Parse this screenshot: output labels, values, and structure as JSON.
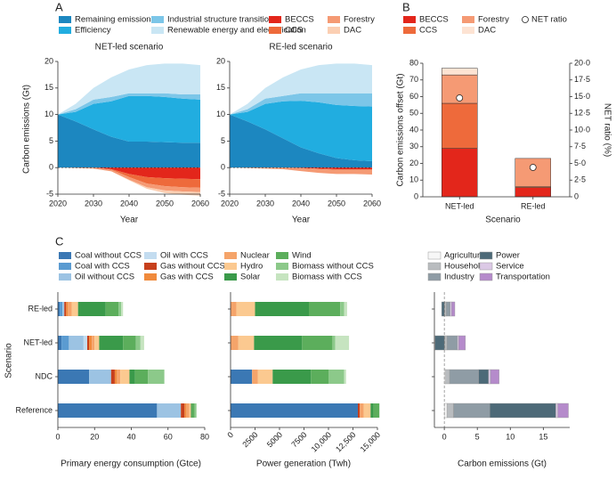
{
  "panel_labels": [
    "A",
    "B",
    "C"
  ],
  "chart_data": [
    {
      "type": "area",
      "title": "NET-led scenario",
      "xlabel": "Year",
      "ylabel": "Carbon emissions (Gt)",
      "x": [
        2020,
        2025,
        2030,
        2035,
        2040,
        2045,
        2050,
        2055,
        2060
      ],
      "xlim": [
        2020,
        2060
      ],
      "xticks": [
        2020,
        2030,
        2040,
        2050,
        2060
      ],
      "ylim": [
        -5,
        20
      ],
      "yticks": [
        -5,
        0,
        5,
        10,
        15,
        20
      ],
      "series": [
        {
          "name": "Remaining emissions",
          "color": "#1c87c0",
          "values": [
            10,
            8.7,
            7.2,
            5.8,
            4.9,
            4.9,
            4.8,
            4.7,
            4.7
          ]
        },
        {
          "name": "Efficiency",
          "color": "#21ade0",
          "values": [
            0,
            1.8,
            4.8,
            6.7,
            8.6,
            8.6,
            8.5,
            8.3,
            8.1
          ]
        },
        {
          "name": "Industrial structure transition",
          "color": "#7cc6e8",
          "values": [
            0,
            0.5,
            0.8,
            0.8,
            0.5,
            0.5,
            0.7,
            0.8,
            1.0
          ]
        },
        {
          "name": "Renewable energy and electrification",
          "color": "#c9e6f4",
          "values": [
            0,
            1,
            2.2,
            3.7,
            4.5,
            5.3,
            5.6,
            5.8,
            5.5
          ]
        },
        {
          "name": "BECCS",
          "color": "#e3261b",
          "values": [
            0,
            0,
            0,
            -0.3,
            -1.2,
            -1.8,
            -2,
            -2.1,
            -2.2
          ]
        },
        {
          "name": "CCS",
          "color": "#ee6a3b",
          "values": [
            0,
            0,
            0,
            -0.1,
            -0.6,
            -1.2,
            -1.5,
            -1.6,
            -1.6
          ]
        },
        {
          "name": "Forestry",
          "color": "#f59a74",
          "values": [
            0,
            -0.1,
            -0.2,
            -0.3,
            -0.5,
            -0.7,
            -0.8,
            -0.8,
            -0.8
          ]
        },
        {
          "name": "DAC",
          "color": "#fbcfb3",
          "values": [
            0,
            0,
            0,
            0,
            -0.1,
            -0.3,
            -0.5,
            -0.6,
            -0.7
          ]
        }
      ]
    },
    {
      "type": "area",
      "title": "RE-led scenario",
      "xlabel": "Year",
      "x": [
        2020,
        2025,
        2030,
        2035,
        2040,
        2045,
        2050,
        2055,
        2060
      ],
      "xlim": [
        2020,
        2060
      ],
      "xticks": [
        2020,
        2030,
        2040,
        2050,
        2060
      ],
      "ylim": [
        -5,
        20
      ],
      "yticks": [
        -5,
        0,
        5,
        10,
        15,
        20
      ],
      "series": [
        {
          "values": [
            10,
            8.7,
            7.2,
            5.5,
            3.8,
            2.7,
            1.8,
            1.4,
            1.2
          ]
        },
        {
          "values": [
            0,
            1.8,
            4.8,
            7,
            8.8,
            9.6,
            10,
            10.2,
            10.3
          ]
        },
        {
          "values": [
            0,
            0.5,
            1,
            1,
            1.4,
            1.7,
            2.2,
            2.4,
            2.5
          ]
        },
        {
          "values": [
            0,
            1,
            2,
            3.5,
            4.5,
            5.3,
            5.6,
            5.6,
            5.3
          ]
        },
        {
          "values": [
            0,
            0,
            0,
            0,
            -0.1,
            -0.2,
            -0.3,
            -0.3,
            -0.3
          ]
        },
        {
          "values": [
            0,
            0,
            0,
            0,
            -0.05,
            -0.1,
            -0.1,
            -0.1,
            -0.1
          ]
        },
        {
          "values": [
            0,
            -0.1,
            -0.2,
            -0.3,
            -0.5,
            -0.7,
            -0.8,
            -0.8,
            -0.9
          ]
        },
        {
          "values": [
            0,
            0,
            0,
            0,
            0,
            0,
            0,
            0,
            0
          ]
        }
      ]
    },
    {
      "type": "bar",
      "categories": [
        "NET-led",
        "RE-led"
      ],
      "xlabel": "Scenario",
      "ylabel": "Carbon emissions offset (Gt)",
      "y2label": "NET ratio (%)",
      "ylim": [
        0,
        80
      ],
      "yticks": [
        0,
        10,
        20,
        30,
        40,
        50,
        60,
        70,
        80
      ],
      "y2lim": [
        0,
        20
      ],
      "y2ticks": [
        0,
        {
          "value": 2.5,
          "label": "2·5"
        },
        {
          "value": 5,
          "label": "5·0"
        },
        {
          "value": 7.5,
          "label": "7·5"
        },
        {
          "value": 10,
          "label": "10·0"
        },
        {
          "value": 12.5,
          "label": "12·5"
        },
        {
          "value": 15,
          "label": "15·0"
        },
        {
          "value": 17.5,
          "label": "17·5"
        },
        {
          "value": 20,
          "label": "20·0"
        }
      ],
      "series": [
        {
          "name": "BECCS",
          "color": "#e3261b",
          "values": [
            29,
            5.5
          ]
        },
        {
          "name": "CCS",
          "color": "#ee6a3b",
          "values": [
            27,
            0.5
          ]
        },
        {
          "name": "Forestry",
          "color": "#f59a74",
          "values": [
            17,
            17
          ]
        },
        {
          "name": "DAC",
          "color": "#fde3d3",
          "values": [
            4,
            0
          ]
        },
        {
          "name": "NET ratio",
          "color": "#ffffff",
          "axis": "y2",
          "values": [
            14.8,
            4.4
          ]
        }
      ]
    },
    {
      "type": "hbar",
      "ylabel": "Scenario",
      "xlabel": "Primary energy consumption (Gtce)",
      "categories": [
        "RE-led",
        "NET-led",
        "NDC",
        "Reference"
      ],
      "xlim": [
        0,
        80
      ],
      "xticks": [
        0,
        20,
        40,
        60,
        80
      ],
      "series": [
        {
          "name": "Coal without CCS",
          "color": "#3b78b4",
          "values": [
            1,
            2,
            17,
            54
          ]
        },
        {
          "name": "Coal with CCS",
          "color": "#5b9bd1",
          "values": [
            1.5,
            4,
            0,
            0
          ]
        },
        {
          "name": "Oil without CCS",
          "color": "#9cc3e3",
          "values": [
            1,
            8,
            12,
            13
          ]
        },
        {
          "name": "Oil with CCS",
          "color": "#c3dcf0",
          "values": [
            0,
            2,
            0,
            0
          ]
        },
        {
          "name": "Gas without CCS",
          "color": "#c7401c",
          "values": [
            1,
            1,
            2,
            2
          ]
        },
        {
          "name": "Gas with CCS",
          "color": "#f08a3c",
          "values": [
            1,
            1.5,
            1,
            1
          ]
        },
        {
          "name": "Nuclear",
          "color": "#f5a46a",
          "values": [
            2,
            1.5,
            2,
            1.5
          ]
        },
        {
          "name": "Hydro",
          "color": "#fbc990",
          "values": [
            3.5,
            2.5,
            5,
            1
          ]
        },
        {
          "name": "Solar",
          "color": "#3a9a4a",
          "values": [
            15,
            13,
            3,
            0.5
          ]
        },
        {
          "name": "Wind",
          "color": "#5cae5c",
          "values": [
            7,
            7,
            7,
            1.5
          ]
        },
        {
          "name": "Biomass without CCS",
          "color": "#8cc98a",
          "values": [
            1.5,
            2.5,
            9,
            1
          ]
        },
        {
          "name": "Biomass with CCS",
          "color": "#c6e4c0",
          "values": [
            1,
            2,
            0,
            0
          ]
        }
      ]
    },
    {
      "type": "hbar",
      "xlabel": "Power generation  (Twh)",
      "xlim": [
        0,
        15000
      ],
      "xticks": [
        0,
        2500,
        5000,
        7500,
        {
          "value": 10000,
          "label": "10,000"
        },
        {
          "value": 12500,
          "label": "12,500"
        },
        {
          "value": 15000,
          "label": "15,000"
        }
      ],
      "series": [
        {
          "values": [
            0,
            0,
            2200,
            13000
          ]
        },
        {
          "values": [
            0,
            0,
            0,
            0
          ]
        },
        {
          "values": [
            0,
            0,
            0,
            0
          ]
        },
        {
          "values": [
            0,
            0,
            0,
            0
          ]
        },
        {
          "values": [
            0,
            0,
            0,
            200
          ]
        },
        {
          "values": [
            0,
            0,
            0,
            0
          ]
        },
        {
          "values": [
            600,
            800,
            600,
            400
          ]
        },
        {
          "values": [
            1900,
            1600,
            1500,
            700
          ]
        },
        {
          "values": [
            5500,
            4900,
            3900,
            300
          ]
        },
        {
          "values": [
            3200,
            3100,
            1800,
            600
          ]
        },
        {
          "values": [
            400,
            300,
            1600,
            0
          ]
        },
        {
          "values": [
            300,
            1400,
            200,
            0
          ]
        }
      ]
    },
    {
      "type": "hbar",
      "xlabel": "Carbon emissions (Gt)",
      "xlim": [
        -1.5,
        19
      ],
      "xticks": [
        0,
        5,
        10,
        15
      ],
      "series": [
        {
          "name": "Agriculture",
          "color": "#f7f7f7",
          "values": [
            0.1,
            0.1,
            0.2,
            0.4
          ]
        },
        {
          "name": "Household",
          "color": "#b9bcbf",
          "values": [
            0.2,
            0.3,
            0.6,
            1.0
          ]
        },
        {
          "name": "Industry",
          "color": "#8f9ca5",
          "values": [
            0.6,
            1.6,
            4.4,
            5.5
          ]
        },
        {
          "name": "Power",
          "color": "#4d6a78",
          "values": [
            -0.4,
            -1.4,
            1.5,
            10
          ]
        },
        {
          "name": "Service",
          "color": "#dcc9e6",
          "values": [
            0.2,
            0.2,
            0.3,
            0.3
          ]
        },
        {
          "name": "Transportation",
          "color": "#b58bcb",
          "values": [
            0.5,
            1.0,
            1.3,
            1.6
          ]
        }
      ]
    }
  ]
}
